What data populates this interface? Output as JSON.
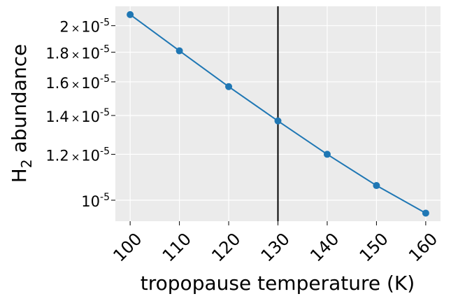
{
  "chart_data": {
    "type": "line",
    "xlabel": "tropopause temperature (K)",
    "ylabel": "H",
    "ylabel_sub": "2",
    "ylabel_rest": " abundance",
    "yscale": "log",
    "grid": true,
    "xlim": [
      97,
      163
    ],
    "ylim": [
      9.2e-06,
      2.16e-05
    ],
    "x_ticks": [
      100,
      110,
      120,
      130,
      140,
      150,
      160
    ],
    "x_tick_labels": [
      "100",
      "110",
      "120",
      "130",
      "140",
      "150",
      "160"
    ],
    "y_ticks": [
      {
        "value": 2e-05,
        "mantissa": "2",
        "exponent": "-5"
      },
      {
        "value": 1.8e-05,
        "mantissa": "1.8",
        "exponent": "-5"
      },
      {
        "value": 1.6e-05,
        "mantissa": "1.6",
        "exponent": "-5"
      },
      {
        "value": 1.4e-05,
        "mantissa": "1.4",
        "exponent": "-5"
      },
      {
        "value": 1.2e-05,
        "mantissa": "1.2",
        "exponent": "-5"
      },
      {
        "value": 1e-05,
        "mantissa": "",
        "exponent": "-5"
      }
    ],
    "y_tick_times": "×",
    "y_tick_base": "10",
    "series": [
      {
        "color": "#1f77b4",
        "x": [
          100,
          110,
          120,
          130,
          140,
          150,
          160
        ],
        "y": [
          2.09e-05,
          1.81e-05,
          1.57e-05,
          1.37e-05,
          1.2e-05,
          1.06e-05,
          9.5e-06
        ]
      }
    ],
    "vline": {
      "x": 130,
      "color": "#000000"
    },
    "colors": {
      "background": "#ebebeb",
      "grid": "#ffffff"
    }
  }
}
